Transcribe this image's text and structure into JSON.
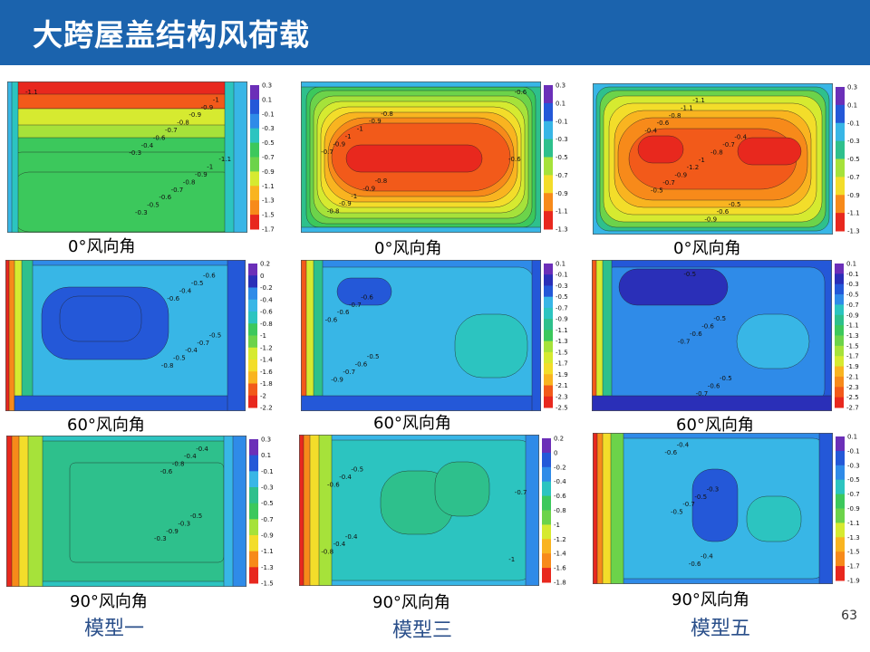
{
  "title": "大跨屋盖结构风荷载",
  "page_number": "63",
  "models": [
    {
      "label": "模型一"
    },
    {
      "label": "模型三"
    },
    {
      "label": "模型五"
    }
  ],
  "chart_data": [
    {
      "type": "heatmap",
      "model": "模型一",
      "caption": "0°风向角",
      "colorbar_ticks": [
        "0.3",
        "0.1",
        "-0.1",
        "-0.3",
        "-0.5",
        "-0.7",
        "-0.9",
        "-1.1",
        "-1.3",
        "-1.5",
        "-1.7"
      ],
      "contour_labels": [
        "-1.1",
        "-1.1",
        "-1",
        "-1",
        "-0.9",
        "-0.9",
        "-0.9",
        "-0.8",
        "-0.8",
        "-0.7",
        "-0.7",
        "-0.6",
        "-0.6",
        "-0.5",
        "-0.4",
        "-0.3",
        "-0.3"
      ]
    },
    {
      "type": "heatmap",
      "model": "模型三",
      "caption": "0°风向角",
      "colorbar_ticks": [
        "0.3",
        "0.1",
        "-0.1",
        "-0.3",
        "-0.5",
        "-0.7",
        "-0.9",
        "-1.1",
        "-1.3"
      ],
      "contour_labels": [
        "-0.8",
        "-0.8",
        "-0.9",
        "-0.9",
        "-1",
        "-1",
        "-1",
        "-0.9",
        "-0.9",
        "-0.8",
        "-0.7",
        "-0.6",
        "-0.6"
      ]
    },
    {
      "type": "heatmap",
      "model": "模型五",
      "caption": "0°风向角",
      "colorbar_ticks": [
        "0.3",
        "0.1",
        "-0.1",
        "-0.3",
        "-0.5",
        "-0.7",
        "-0.9",
        "-1.1",
        "-1.3"
      ],
      "contour_labels": [
        "-0.4",
        "-0.5",
        "-0.7",
        "-0.6",
        "-0.8",
        "-0.9",
        "-1",
        "-1.1",
        "-1.2",
        "-1.1",
        "-0.9",
        "-0.8",
        "-0.7",
        "-0.6",
        "-0.5",
        "-0.4"
      ]
    },
    {
      "type": "heatmap",
      "model": "模型一",
      "caption": "60°风向角",
      "colorbar_ticks": [
        "0.2",
        "0",
        "-0.2",
        "-0.4",
        "-0.6",
        "-0.8",
        "-1",
        "-1.2",
        "-1.4",
        "-1.6",
        "-1.8",
        "-2",
        "-2.2"
      ],
      "contour_labels": [
        "-0.5",
        "-0.6",
        "-0.7",
        "-0.5",
        "-0.4",
        "-0.4",
        "-0.5",
        "-0.6",
        "-0.8"
      ]
    },
    {
      "type": "heatmap",
      "model": "模型三",
      "caption": "60°风向角",
      "colorbar_ticks": [
        "0.1",
        "-0.1",
        "-0.3",
        "-0.5",
        "-0.7",
        "-0.9",
        "-1.1",
        "-1.3",
        "-1.5",
        "-1.7",
        "-1.9",
        "-2.1",
        "-2.3",
        "-2.5"
      ],
      "contour_labels": [
        "-0.5",
        "-0.6",
        "-0.6",
        "-0.7",
        "-0.7",
        "-0.6",
        "-0.9",
        "-0.6"
      ]
    },
    {
      "type": "heatmap",
      "model": "模型五",
      "caption": "60°风向角",
      "colorbar_ticks": [
        "0.1",
        "-0.1",
        "-0.3",
        "-0.5",
        "-0.7",
        "-0.9",
        "-1.1",
        "-1.3",
        "-1.5",
        "-1.7",
        "-1.9",
        "-2.1",
        "-2.3",
        "-2.5",
        "-2.7"
      ],
      "contour_labels": [
        "-0.5",
        "-0.5",
        "-0.6",
        "-0.6",
        "-0.7",
        "-0.6",
        "-0.5",
        "-0.7"
      ]
    },
    {
      "type": "heatmap",
      "model": "模型一",
      "caption": "90°风向角",
      "colorbar_ticks": [
        "0.3",
        "0.1",
        "-0.1",
        "-0.3",
        "-0.5",
        "-0.7",
        "-0.9",
        "-1.1",
        "-1.3",
        "-1.5"
      ],
      "contour_labels": [
        "-0.4",
        "-0.5",
        "-0.4",
        "-0.3",
        "-0.8",
        "-0.9",
        "-0.6",
        "-0.3"
      ]
    },
    {
      "type": "heatmap",
      "model": "模型三",
      "caption": "90°风向角",
      "colorbar_ticks": [
        "0.2",
        "0",
        "-0.2",
        "-0.4",
        "-0.6",
        "-0.8",
        "-1",
        "-1.2",
        "-1.4",
        "-1.6",
        "-1.8"
      ],
      "contour_labels": [
        "-0.5",
        "-0.4",
        "-0.4",
        "-0.4",
        "-0.6",
        "-0.8",
        "-0.7",
        "-1"
      ]
    },
    {
      "type": "heatmap",
      "model": "模型五",
      "caption": "90°风向角",
      "colorbar_ticks": [
        "0.1",
        "-0.1",
        "-0.3",
        "-0.5",
        "-0.7",
        "-0.9",
        "-1.1",
        "-1.3",
        "-1.5",
        "-1.7",
        "-1.9"
      ],
      "contour_labels": [
        "-0.3",
        "-0.4",
        "-0.5",
        "-0.6",
        "-0.7",
        "-0.4",
        "-0.5",
        "-0.6"
      ]
    }
  ]
}
